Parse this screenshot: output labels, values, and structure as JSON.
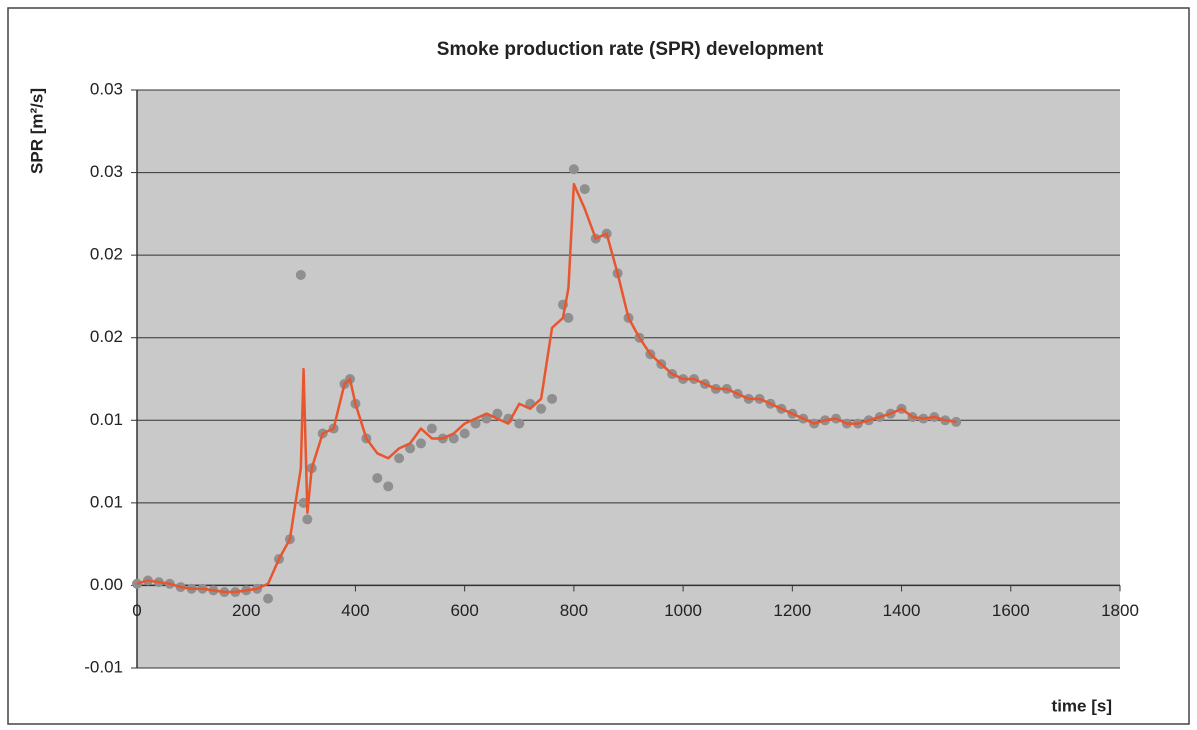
{
  "chart_data": {
    "type": "line",
    "title": "Smoke production rate (SPR) development",
    "x_label": "time [s]",
    "y_label": "SPR [m²/s]",
    "xlim": [
      0,
      1800
    ],
    "xticks": [
      0,
      200,
      400,
      600,
      800,
      1000,
      1200,
      1400,
      1600,
      1800
    ],
    "ylim": [
      -0.005,
      0.03
    ],
    "yticks": [
      {
        "value": -0.005,
        "label": "-0.01"
      },
      {
        "value": 0,
        "label": "0.00"
      },
      {
        "value": 0.005,
        "label": "0.01"
      },
      {
        "value": 0.01,
        "label": "0.01"
      },
      {
        "value": 0.015,
        "label": "0.02"
      },
      {
        "value": 0.02,
        "label": "0.02"
      },
      {
        "value": 0.025,
        "label": "0.03"
      },
      {
        "value": 0.03,
        "label": "0.03"
      }
    ],
    "grid": true,
    "x": [
      0,
      20,
      40,
      60,
      80,
      100,
      120,
      140,
      160,
      180,
      200,
      220,
      240,
      260,
      280,
      300,
      305,
      312,
      320,
      340,
      360,
      380,
      390,
      400,
      420,
      440,
      460,
      480,
      500,
      520,
      540,
      560,
      580,
      600,
      620,
      640,
      660,
      680,
      700,
      720,
      740,
      760,
      780,
      790,
      800,
      820,
      840,
      860,
      880,
      900,
      920,
      940,
      960,
      980,
      1000,
      1020,
      1040,
      1060,
      1080,
      1100,
      1120,
      1140,
      1160,
      1180,
      1200,
      1220,
      1240,
      1260,
      1280,
      1300,
      1320,
      1340,
      1360,
      1380,
      1400,
      1420,
      1440,
      1460,
      1480,
      1500
    ],
    "series": [
      {
        "style": "markers",
        "color": "#8f8f8f",
        "values": [
          0.0001,
          0.0003,
          0.0002,
          0.0001,
          -0.0001,
          -0.0002,
          -0.0002,
          -0.0003,
          -0.0004,
          -0.0004,
          -0.0003,
          -0.0002,
          -0.0008,
          0.0016,
          0.0028,
          0.0188,
          0.005,
          0.004,
          0.0071,
          0.0092,
          0.0095,
          0.0122,
          0.0125,
          0.011,
          0.0089,
          0.0065,
          0.006,
          0.0077,
          0.0083,
          0.0086,
          0.0095,
          0.0089,
          0.0089,
          0.0092,
          0.0098,
          0.0101,
          0.0104,
          0.0101,
          0.0098,
          0.011,
          0.0107,
          0.0113,
          0.017,
          0.0162,
          0.0252,
          0.024,
          0.021,
          0.0213,
          0.0189,
          0.0162,
          0.015,
          0.014,
          0.0134,
          0.0128,
          0.0125,
          0.0125,
          0.0122,
          0.0119,
          0.0119,
          0.0116,
          0.0113,
          0.0113,
          0.011,
          0.0107,
          0.0104,
          0.0101,
          0.0098,
          0.01,
          0.0101,
          0.0098,
          0.0098,
          0.01,
          0.0102,
          0.0104,
          0.0107,
          0.0102,
          0.0101,
          0.0102,
          0.01,
          0.0099
        ]
      },
      {
        "style": "line",
        "color": "#e8552e",
        "values": [
          0.0001,
          0.0003,
          0.0002,
          0.0001,
          -0.0001,
          -0.0002,
          -0.0002,
          -0.0003,
          -0.0004,
          -0.0004,
          -0.0003,
          -0.0002,
          0.0001,
          0.0016,
          0.0028,
          0.0071,
          0.0131,
          0.0044,
          0.0071,
          0.0092,
          0.0095,
          0.0122,
          0.0125,
          0.011,
          0.0089,
          0.008,
          0.0077,
          0.0083,
          0.0086,
          0.0095,
          0.0089,
          0.0089,
          0.0092,
          0.0098,
          0.0101,
          0.0104,
          0.0101,
          0.0098,
          0.011,
          0.0107,
          0.0113,
          0.0156,
          0.0162,
          0.018,
          0.0243,
          0.0228,
          0.021,
          0.0213,
          0.0189,
          0.0162,
          0.015,
          0.014,
          0.0134,
          0.0128,
          0.0125,
          0.0125,
          0.0122,
          0.0119,
          0.0119,
          0.0116,
          0.0113,
          0.0113,
          0.011,
          0.0107,
          0.0104,
          0.0101,
          0.0098,
          0.01,
          0.0101,
          0.0098,
          0.0098,
          0.01,
          0.0102,
          0.0104,
          0.0107,
          0.0102,
          0.0101,
          0.0102,
          0.01,
          0.0099
        ]
      }
    ]
  }
}
